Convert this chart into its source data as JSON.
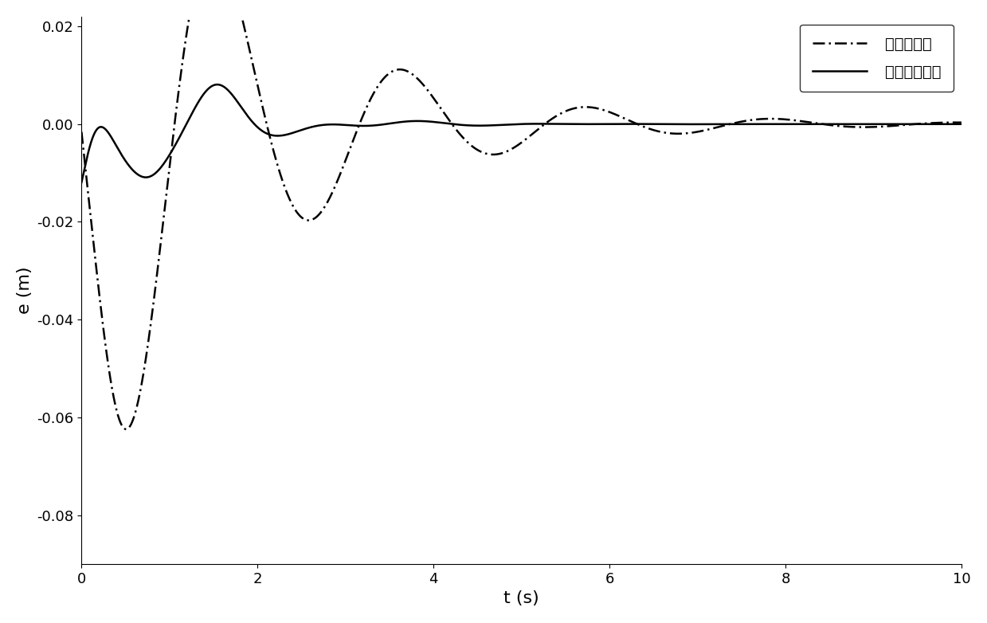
{
  "title": "",
  "xlabel": "t (s)",
  "ylabel": "e (m)",
  "xlim": [
    0,
    10
  ],
  "ylim": [
    -0.09,
    0.022
  ],
  "yticks": [
    -0.08,
    -0.06,
    -0.04,
    -0.02,
    0.0,
    0.02
  ],
  "xticks": [
    0,
    2,
    4,
    6,
    8,
    10
  ],
  "legend_labels": [
    "线性滑模面",
    "非线性滑模面"
  ],
  "line1_style": "-.",
  "line2_style": "-",
  "line_color": "#000000",
  "line_width": 1.8,
  "background_color": "#ffffff",
  "figsize": [
    12.39,
    7.82
  ],
  "dpi": 100
}
